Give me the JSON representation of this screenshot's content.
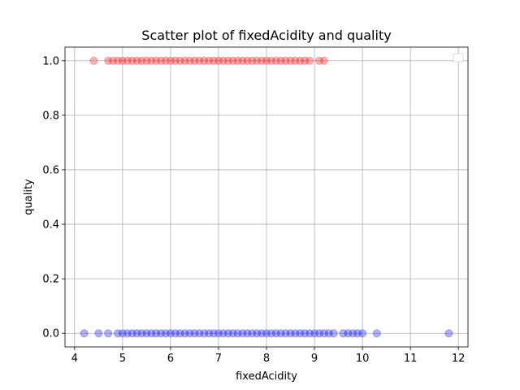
{
  "chart_data": {
    "type": "scatter",
    "title": "Scatter plot of fixedAcidity and quality",
    "xlabel": "fixedAcidity",
    "ylabel": "quality",
    "xlim": [
      3.8,
      12.2
    ],
    "ylim": [
      -0.05,
      1.05
    ],
    "xticks": [
      4,
      5,
      6,
      7,
      8,
      9,
      10,
      11,
      12
    ],
    "yticks": [
      0.0,
      0.2,
      0.4,
      0.6,
      0.8,
      1.0
    ],
    "xtick_labels": [
      "4",
      "5",
      "6",
      "7",
      "8",
      "9",
      "10",
      "11",
      "12"
    ],
    "ytick_labels": [
      "0.0",
      "0.2",
      "0.4",
      "0.6",
      "0.8",
      "1.0"
    ],
    "grid": true,
    "legend": "top-right (empty)",
    "series": [
      {
        "color": "#ff0000",
        "y": 1.0,
        "x": [
          4.4,
          4.7,
          4.8,
          4.9,
          5.0,
          5.1,
          5.2,
          5.3,
          5.4,
          5.5,
          5.6,
          5.7,
          5.8,
          5.9,
          6.0,
          6.1,
          6.2,
          6.3,
          6.4,
          6.5,
          6.6,
          6.7,
          6.8,
          6.9,
          7.0,
          7.1,
          7.2,
          7.3,
          7.4,
          7.5,
          7.6,
          7.7,
          7.8,
          7.9,
          8.0,
          8.1,
          8.2,
          8.3,
          8.4,
          8.5,
          8.6,
          8.7,
          8.8,
          8.9,
          9.1,
          9.2
        ]
      },
      {
        "color": "#0000ff",
        "y": 0.0,
        "x": [
          4.2,
          4.5,
          4.7,
          4.9,
          5.0,
          5.1,
          5.2,
          5.3,
          5.4,
          5.5,
          5.6,
          5.7,
          5.8,
          5.9,
          6.0,
          6.1,
          6.2,
          6.3,
          6.4,
          6.5,
          6.6,
          6.7,
          6.8,
          6.9,
          7.0,
          7.1,
          7.2,
          7.3,
          7.4,
          7.5,
          7.6,
          7.7,
          7.8,
          7.9,
          8.0,
          8.1,
          8.2,
          8.3,
          8.4,
          8.5,
          8.6,
          8.7,
          8.8,
          8.9,
          9.0,
          9.1,
          9.2,
          9.3,
          9.4,
          9.6,
          9.7,
          9.8,
          9.9,
          10.0,
          10.3,
          11.8
        ]
      }
    ]
  }
}
